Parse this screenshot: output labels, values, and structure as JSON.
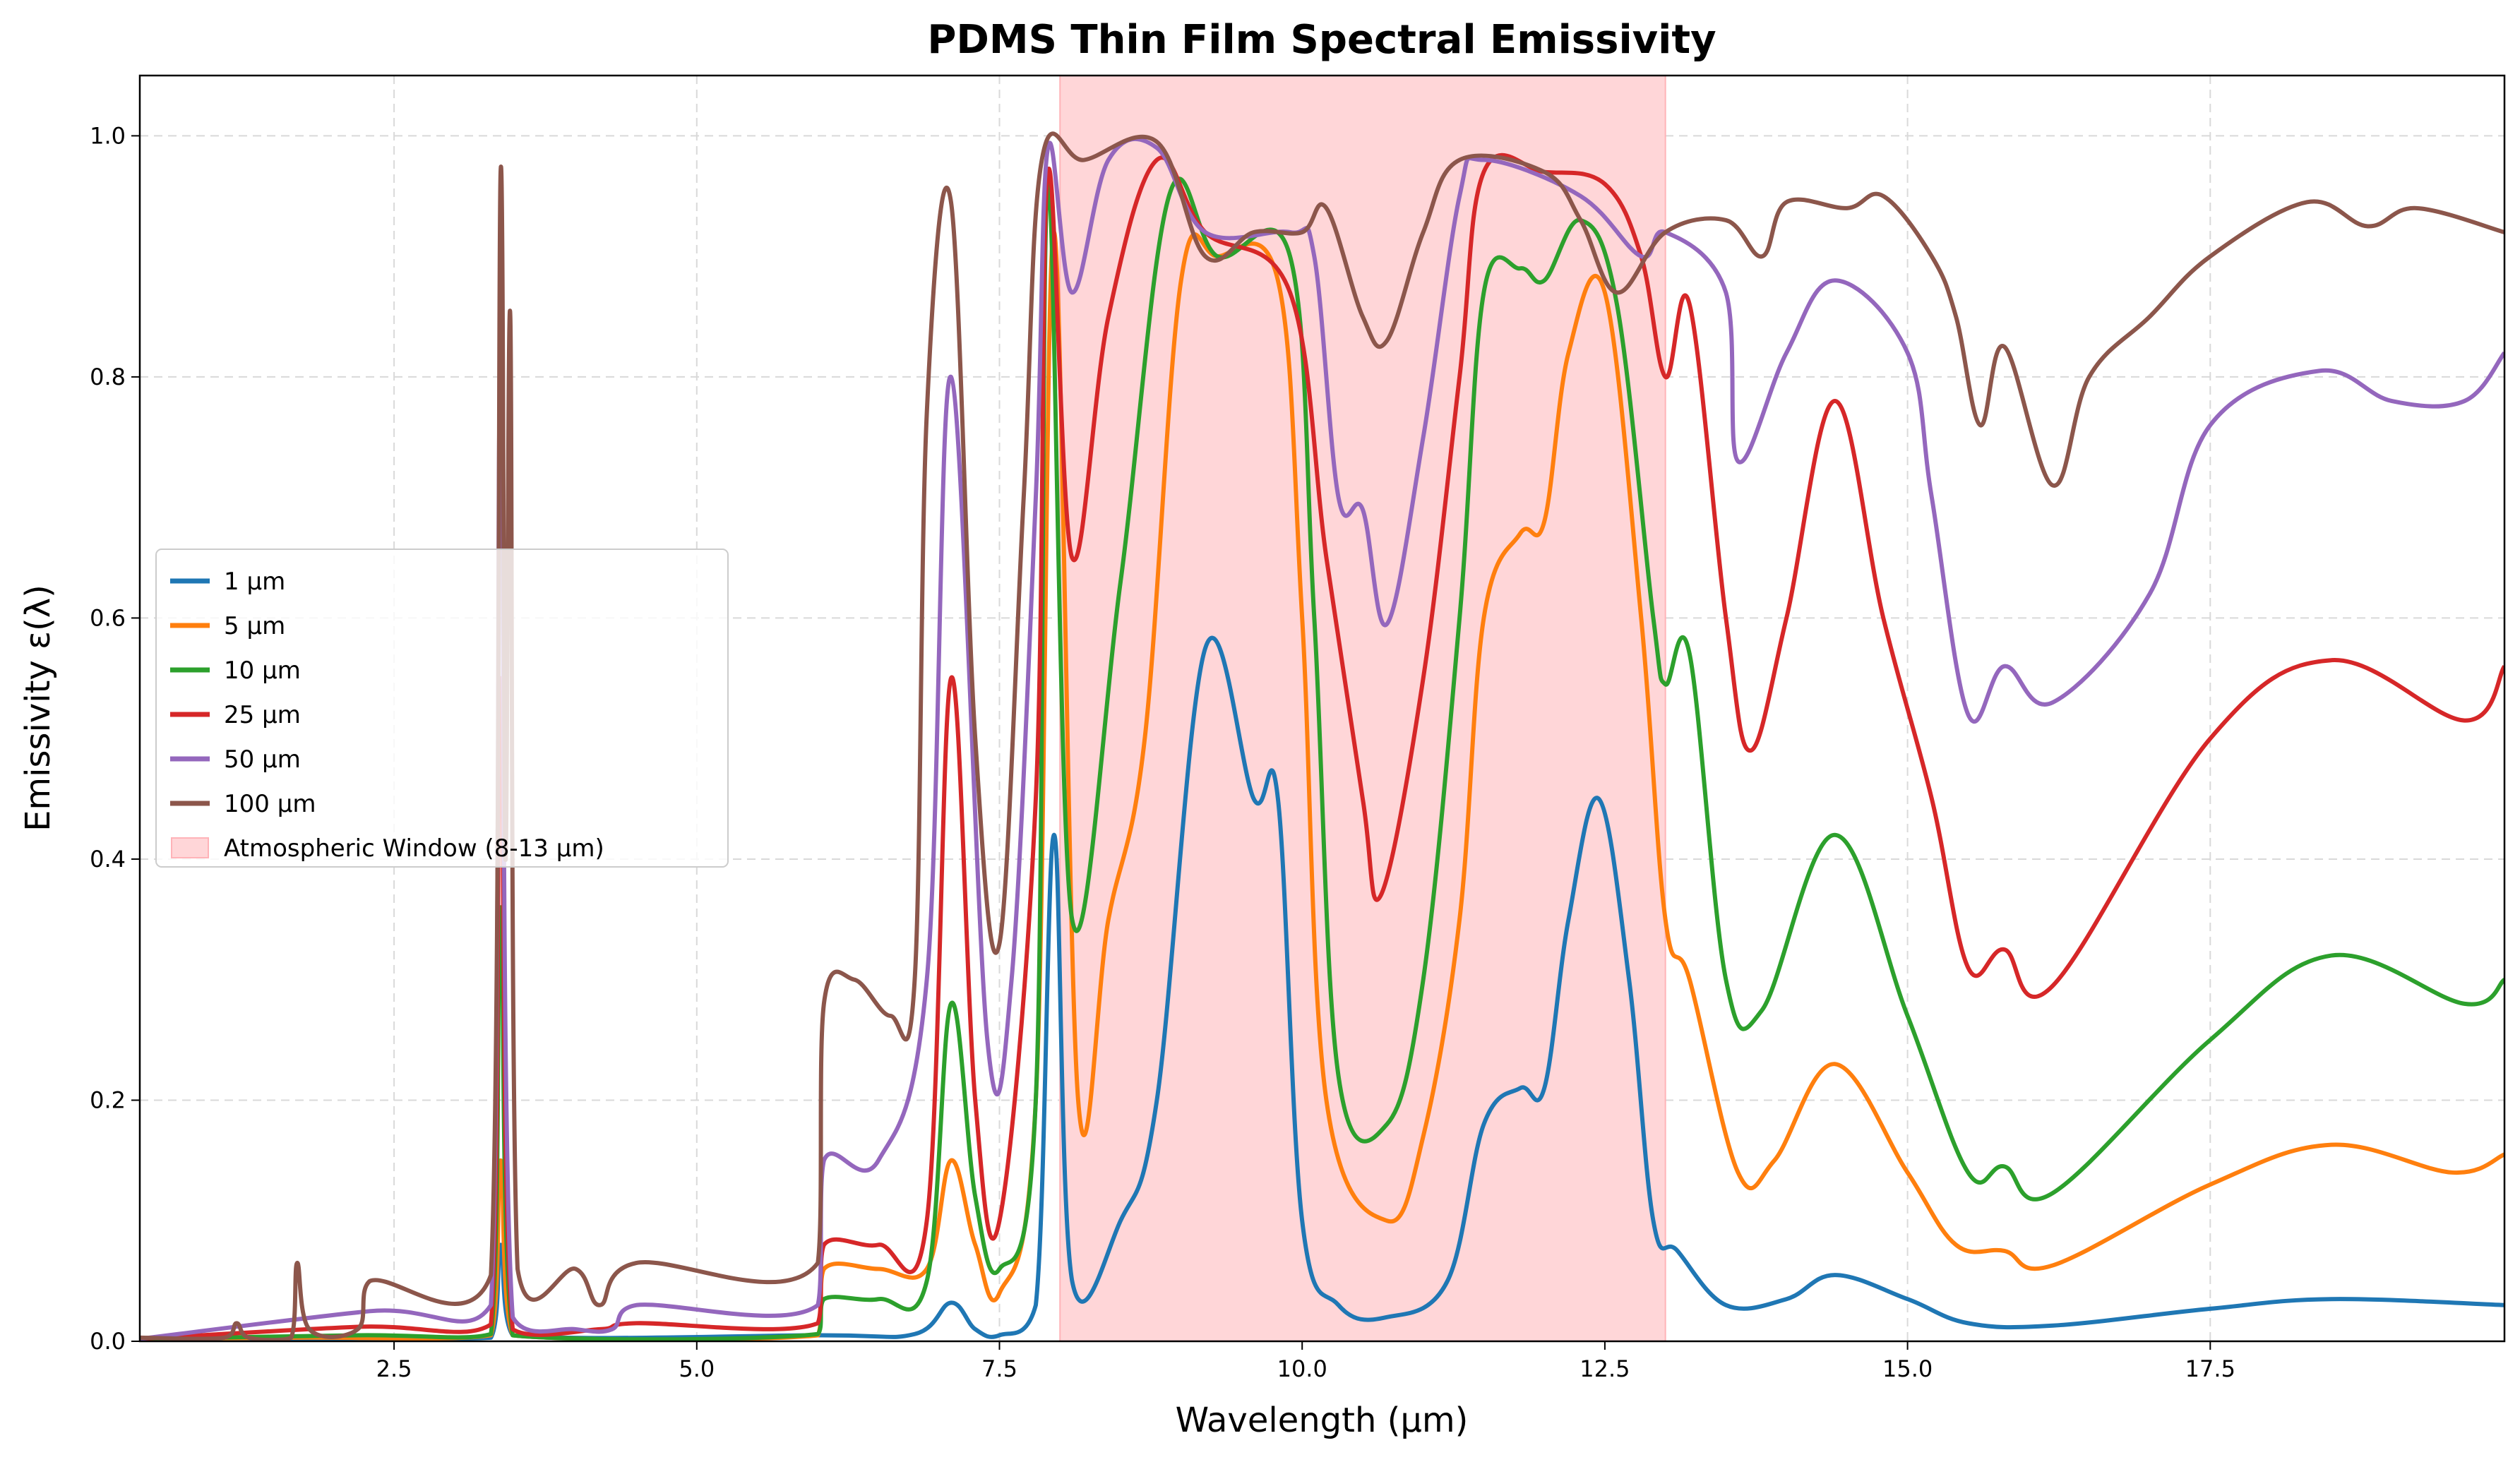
{
  "chart_data": {
    "type": "line",
    "title": "PDMS Thin Film Spectral Emissivity",
    "xlabel": "Wavelength (µm)",
    "ylabel": "Emissivity ε(λ)",
    "xlim": [
      0.4,
      19.93
    ],
    "ylim": [
      0,
      1.05
    ],
    "xticks": [
      2.5,
      5.0,
      7.5,
      10.0,
      12.5,
      15.0,
      17.5
    ],
    "xtick_labels": [
      "2.5",
      "5.0",
      "7.5",
      "10.0",
      "12.5",
      "15.0",
      "17.5"
    ],
    "yticks": [
      0.0,
      0.2,
      0.4,
      0.6,
      0.8,
      1.0
    ],
    "ytick_labels": [
      "0.0",
      "0.2",
      "0.4",
      "0.6",
      "0.8",
      "1.0"
    ],
    "grid": true,
    "legend_position": "center-left",
    "shaded_region": {
      "label": "Atmospheric Window (8-13 µm)",
      "x_start": 8,
      "x_end": 13,
      "color": "#ffb3b8"
    },
    "series": [
      {
        "name": "1 µm",
        "color": "#1f77b4",
        "points": [
          [
            0.4,
            0.002
          ],
          [
            3.3,
            0.003
          ],
          [
            3.38,
            0.08
          ],
          [
            3.48,
            0.005
          ],
          [
            6.0,
            0.005
          ],
          [
            6.8,
            0.006
          ],
          [
            7.1,
            0.032
          ],
          [
            7.3,
            0.01
          ],
          [
            7.5,
            0.005
          ],
          [
            7.8,
            0.03
          ],
          [
            7.95,
            0.42
          ],
          [
            8.1,
            0.05
          ],
          [
            8.5,
            0.1
          ],
          [
            8.8,
            0.2
          ],
          [
            9.2,
            0.575
          ],
          [
            9.6,
            0.45
          ],
          [
            9.8,
            0.45
          ],
          [
            10.0,
            0.1
          ],
          [
            10.3,
            0.03
          ],
          [
            10.7,
            0.02
          ],
          [
            11.2,
            0.05
          ],
          [
            11.5,
            0.18
          ],
          [
            11.8,
            0.21
          ],
          [
            12.0,
            0.21
          ],
          [
            12.2,
            0.35
          ],
          [
            12.45,
            0.45
          ],
          [
            12.7,
            0.3
          ],
          [
            12.9,
            0.1
          ],
          [
            13.1,
            0.075
          ],
          [
            13.5,
            0.03
          ],
          [
            14.0,
            0.035
          ],
          [
            14.4,
            0.055
          ],
          [
            15.0,
            0.035
          ],
          [
            15.5,
            0.015
          ],
          [
            16.2,
            0.013
          ],
          [
            17.5,
            0.027
          ],
          [
            18.5,
            0.035
          ],
          [
            19.93,
            0.03
          ]
        ]
      },
      {
        "name": "5 µm",
        "color": "#ff7f0e",
        "points": [
          [
            0.4,
            0.002
          ],
          [
            1.7,
            0.003
          ],
          [
            3.3,
            0.005
          ],
          [
            3.38,
            0.15
          ],
          [
            3.48,
            0.005
          ],
          [
            6.0,
            0.005
          ],
          [
            6.05,
            0.06
          ],
          [
            6.5,
            0.06
          ],
          [
            6.9,
            0.06
          ],
          [
            7.1,
            0.15
          ],
          [
            7.3,
            0.08
          ],
          [
            7.5,
            0.04
          ],
          [
            7.8,
            0.2
          ],
          [
            7.95,
            0.92
          ],
          [
            8.15,
            0.2
          ],
          [
            8.4,
            0.35
          ],
          [
            8.7,
            0.5
          ],
          [
            9.0,
            0.88
          ],
          [
            9.3,
            0.9
          ],
          [
            9.8,
            0.88
          ],
          [
            10.0,
            0.6
          ],
          [
            10.2,
            0.2
          ],
          [
            10.7,
            0.1
          ],
          [
            11.0,
            0.17
          ],
          [
            11.3,
            0.35
          ],
          [
            11.5,
            0.6
          ],
          [
            11.8,
            0.67
          ],
          [
            12.0,
            0.68
          ],
          [
            12.2,
            0.82
          ],
          [
            12.5,
            0.87
          ],
          [
            12.8,
            0.6
          ],
          [
            13.0,
            0.35
          ],
          [
            13.2,
            0.3
          ],
          [
            13.6,
            0.14
          ],
          [
            13.9,
            0.15
          ],
          [
            14.4,
            0.23
          ],
          [
            15.0,
            0.14
          ],
          [
            15.4,
            0.08
          ],
          [
            15.8,
            0.075
          ],
          [
            16.2,
            0.063
          ],
          [
            17.5,
            0.13
          ],
          [
            18.5,
            0.163
          ],
          [
            19.5,
            0.14
          ],
          [
            19.93,
            0.155
          ]
        ]
      },
      {
        "name": "10 µm",
        "color": "#2ca02c",
        "points": [
          [
            0.4,
            0.002
          ],
          [
            2.2,
            0.005
          ],
          [
            3.3,
            0.006
          ],
          [
            3.38,
            0.36
          ],
          [
            3.48,
            0.005
          ],
          [
            6.0,
            0.006
          ],
          [
            6.05,
            0.035
          ],
          [
            6.5,
            0.035
          ],
          [
            6.9,
            0.05
          ],
          [
            7.1,
            0.28
          ],
          [
            7.3,
            0.12
          ],
          [
            7.5,
            0.06
          ],
          [
            7.8,
            0.2
          ],
          [
            7.9,
            0.96
          ],
          [
            8.1,
            0.35
          ],
          [
            8.5,
            0.63
          ],
          [
            8.9,
            0.95
          ],
          [
            9.3,
            0.9
          ],
          [
            9.9,
            0.9
          ],
          [
            10.1,
            0.6
          ],
          [
            10.3,
            0.22
          ],
          [
            10.7,
            0.18
          ],
          [
            11.0,
            0.3
          ],
          [
            11.3,
            0.6
          ],
          [
            11.5,
            0.87
          ],
          [
            11.8,
            0.89
          ],
          [
            12.0,
            0.88
          ],
          [
            12.3,
            0.93
          ],
          [
            12.6,
            0.86
          ],
          [
            12.9,
            0.6
          ],
          [
            13.0,
            0.545
          ],
          [
            13.2,
            0.57
          ],
          [
            13.5,
            0.3
          ],
          [
            13.8,
            0.275
          ],
          [
            14.4,
            0.42
          ],
          [
            15.0,
            0.27
          ],
          [
            15.5,
            0.14
          ],
          [
            15.8,
            0.145
          ],
          [
            16.2,
            0.123
          ],
          [
            17.5,
            0.25
          ],
          [
            18.5,
            0.32
          ],
          [
            19.6,
            0.28
          ],
          [
            19.93,
            0.3
          ]
        ]
      },
      {
        "name": "25 µm",
        "color": "#d62728",
        "points": [
          [
            0.4,
            0.002
          ],
          [
            2.2,
            0.012
          ],
          [
            3.3,
            0.014
          ],
          [
            3.38,
            0.55
          ],
          [
            3.48,
            0.01
          ],
          [
            4.2,
            0.01
          ],
          [
            4.5,
            0.015
          ],
          [
            6.0,
            0.015
          ],
          [
            6.05,
            0.08
          ],
          [
            6.5,
            0.08
          ],
          [
            6.9,
            0.1
          ],
          [
            7.1,
            0.55
          ],
          [
            7.3,
            0.2
          ],
          [
            7.5,
            0.1
          ],
          [
            7.8,
            0.45
          ],
          [
            7.9,
            0.97
          ],
          [
            8.1,
            0.65
          ],
          [
            8.4,
            0.85
          ],
          [
            8.8,
            0.98
          ],
          [
            9.2,
            0.92
          ],
          [
            9.9,
            0.87
          ],
          [
            10.2,
            0.65
          ],
          [
            10.5,
            0.45
          ],
          [
            10.65,
            0.37
          ],
          [
            11.0,
            0.55
          ],
          [
            11.3,
            0.8
          ],
          [
            11.5,
            0.97
          ],
          [
            12.0,
            0.97
          ],
          [
            12.5,
            0.96
          ],
          [
            12.8,
            0.9
          ],
          [
            13.0,
            0.8
          ],
          [
            13.2,
            0.86
          ],
          [
            13.5,
            0.6
          ],
          [
            13.7,
            0.49
          ],
          [
            14.0,
            0.6
          ],
          [
            14.4,
            0.78
          ],
          [
            14.8,
            0.6
          ],
          [
            15.2,
            0.45
          ],
          [
            15.5,
            0.31
          ],
          [
            15.8,
            0.325
          ],
          [
            16.2,
            0.295
          ],
          [
            17.5,
            0.5
          ],
          [
            18.5,
            0.565
          ],
          [
            19.6,
            0.515
          ],
          [
            19.93,
            0.56
          ]
        ]
      },
      {
        "name": "50 µm",
        "color": "#9467bd",
        "points": [
          [
            0.4,
            0.002
          ],
          [
            2.3,
            0.025
          ],
          [
            3.3,
            0.03
          ],
          [
            3.38,
            0.8
          ],
          [
            3.48,
            0.02
          ],
          [
            4.0,
            0.01
          ],
          [
            4.3,
            0.01
          ],
          [
            4.5,
            0.03
          ],
          [
            6.0,
            0.03
          ],
          [
            6.05,
            0.15
          ],
          [
            6.5,
            0.15
          ],
          [
            6.9,
            0.3
          ],
          [
            7.1,
            0.8
          ],
          [
            7.4,
            0.25
          ],
          [
            7.6,
            0.3
          ],
          [
            7.8,
            0.7
          ],
          [
            7.9,
            0.99
          ],
          [
            8.1,
            0.87
          ],
          [
            8.4,
            0.98
          ],
          [
            8.8,
            0.99
          ],
          [
            9.2,
            0.92
          ],
          [
            9.9,
            0.92
          ],
          [
            10.1,
            0.9
          ],
          [
            10.3,
            0.7
          ],
          [
            10.5,
            0.69
          ],
          [
            10.7,
            0.595
          ],
          [
            11.0,
            0.75
          ],
          [
            11.3,
            0.95
          ],
          [
            11.5,
            0.98
          ],
          [
            12.3,
            0.95
          ],
          [
            12.8,
            0.9
          ],
          [
            13.0,
            0.92
          ],
          [
            13.5,
            0.87
          ],
          [
            13.6,
            0.73
          ],
          [
            14.0,
            0.82
          ],
          [
            14.4,
            0.88
          ],
          [
            15.0,
            0.82
          ],
          [
            15.2,
            0.7
          ],
          [
            15.5,
            0.52
          ],
          [
            15.8,
            0.56
          ],
          [
            16.2,
            0.53
          ],
          [
            17.0,
            0.62
          ],
          [
            17.5,
            0.76
          ],
          [
            18.4,
            0.805
          ],
          [
            19.0,
            0.78
          ],
          [
            19.6,
            0.78
          ],
          [
            19.93,
            0.82
          ]
        ]
      },
      {
        "name": "100 µm",
        "color": "#8c564b",
        "points": [
          [
            0.4,
            0.003
          ],
          [
            1.1,
            0.003
          ],
          [
            1.2,
            0.015
          ],
          [
            1.3,
            0.003
          ],
          [
            1.65,
            0.003
          ],
          [
            1.7,
            0.065
          ],
          [
            1.8,
            0.01
          ],
          [
            2.2,
            0.01
          ],
          [
            2.3,
            0.05
          ],
          [
            3.3,
            0.055
          ],
          [
            3.38,
            0.97
          ],
          [
            3.42,
            0.4
          ],
          [
            3.46,
            0.85
          ],
          [
            3.52,
            0.06
          ],
          [
            4.0,
            0.06
          ],
          [
            4.2,
            0.03
          ],
          [
            4.5,
            0.065
          ],
          [
            6.0,
            0.065
          ],
          [
            6.05,
            0.28
          ],
          [
            6.3,
            0.3
          ],
          [
            6.6,
            0.27
          ],
          [
            6.8,
            0.3
          ],
          [
            6.9,
            0.77
          ],
          [
            7.1,
            0.945
          ],
          [
            7.3,
            0.5
          ],
          [
            7.5,
            0.33
          ],
          [
            7.7,
            0.7
          ],
          [
            7.85,
            0.98
          ],
          [
            8.2,
            0.98
          ],
          [
            8.8,
            0.995
          ],
          [
            9.2,
            0.9
          ],
          [
            9.6,
            0.92
          ],
          [
            10.0,
            0.92
          ],
          [
            10.2,
            0.94
          ],
          [
            10.5,
            0.85
          ],
          [
            10.7,
            0.83
          ],
          [
            11.0,
            0.92
          ],
          [
            11.3,
            0.98
          ],
          [
            12.0,
            0.97
          ],
          [
            12.3,
            0.93
          ],
          [
            12.6,
            0.87
          ],
          [
            13.0,
            0.92
          ],
          [
            13.5,
            0.93
          ],
          [
            13.8,
            0.9
          ],
          [
            14.0,
            0.945
          ],
          [
            14.5,
            0.94
          ],
          [
            14.8,
            0.95
          ],
          [
            15.2,
            0.9
          ],
          [
            15.4,
            0.85
          ],
          [
            15.6,
            0.76
          ],
          [
            15.8,
            0.825
          ],
          [
            16.2,
            0.71
          ],
          [
            16.5,
            0.8
          ],
          [
            17.0,
            0.85
          ],
          [
            17.5,
            0.9
          ],
          [
            18.3,
            0.945
          ],
          [
            18.8,
            0.925
          ],
          [
            19.2,
            0.94
          ],
          [
            19.93,
            0.92
          ]
        ]
      }
    ]
  }
}
